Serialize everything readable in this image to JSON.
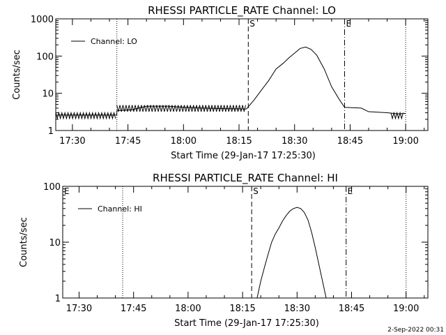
{
  "footer": {
    "date_stamp": "2-Sep-2022 00:31"
  },
  "chart_data": [
    {
      "type": "line",
      "title": "RHESSI PARTICLE_RATE Channel: LO",
      "xlabel": "Start Time (29-Jan-17 17:25:30)",
      "ylabel": "Counts/sec",
      "yscale": "log",
      "xlim": [
        "17:25:30",
        "19:06:00"
      ],
      "ylim": [
        1,
        1000
      ],
      "x_ticks": [
        "17:30",
        "17:45",
        "18:00",
        "18:15",
        "18:30",
        "18:45",
        "19:00"
      ],
      "y_ticks": [
        {
          "value": 1,
          "label": "1"
        },
        {
          "value": 10,
          "label": "10"
        },
        {
          "value": 100,
          "label": "100"
        },
        {
          "value": 1000,
          "label": "1000"
        }
      ],
      "legend": {
        "position": "top-left",
        "entries": [
          "Channel: LO"
        ]
      },
      "markers": [
        {
          "time": "17:42:00",
          "style": "dotted",
          "label": ""
        },
        {
          "time": "18:17:30",
          "style": "dashed",
          "label": "S"
        },
        {
          "time": "18:43:30",
          "style": "dashdot",
          "label": "E"
        },
        {
          "time": "19:00:00",
          "style": "dotted",
          "label": ""
        }
      ],
      "series": [
        {
          "name": "Channel: LO",
          "points": [
            [
              "17:25:30",
              2.6
            ],
            [
              "17:42:00",
              2.6
            ],
            [
              "17:42:00",
              3.4
            ],
            [
              "17:46:00",
              3.6
            ],
            [
              "17:50:00",
              4.5
            ],
            [
              "17:56:00",
              4.5
            ],
            [
              "18:00:00",
              4.2
            ],
            [
              "18:05:00",
              4.0
            ],
            [
              "18:10:00",
              3.9
            ],
            [
              "18:17:00",
              3.8
            ],
            [
              "18:19:00",
              6.5
            ],
            [
              "18:21:00",
              12
            ],
            [
              "18:23:00",
              22
            ],
            [
              "18:25:00",
              45
            ],
            [
              "18:27:00",
              65
            ],
            [
              "18:28:30",
              90
            ],
            [
              "18:30:00",
              120
            ],
            [
              "18:31:30",
              160
            ],
            [
              "18:33:00",
              175
            ],
            [
              "18:34:30",
              150
            ],
            [
              "18:36:00",
              105
            ],
            [
              "18:38:00",
              45
            ],
            [
              "18:40:00",
              15
            ],
            [
              "18:42:00",
              7
            ],
            [
              "18:43:30",
              4.2
            ],
            [
              "18:48:00",
              4.0
            ],
            [
              "18:50:00",
              3.2
            ],
            [
              "18:55:00",
              3.0
            ],
            [
              "18:58:00",
              2.8
            ],
            [
              "19:00:00",
              2.9
            ]
          ],
          "noise": [
            {
              "from": "17:25:30",
              "to": "17:42:00",
              "low": 2.1,
              "high": 3.0
            },
            {
              "from": "17:42:00",
              "to": "18:17:00",
              "low": 3.2,
              "high": 4.8
            },
            {
              "from": "18:56:00",
              "to": "18:59:30",
              "low": 2.1,
              "high": 3.0
            }
          ]
        }
      ]
    },
    {
      "type": "line",
      "title": "RHESSI PARTICLE_RATE Channel: HI",
      "xlabel": "Start Time (29-Jan-17 17:25:30)",
      "ylabel": "Counts/sec",
      "yscale": "log",
      "xlim": [
        "17:25:30",
        "19:06:00"
      ],
      "ylim": [
        1,
        100
      ],
      "x_ticks": [
        "17:30",
        "17:45",
        "18:00",
        "18:15",
        "18:30",
        "18:45",
        "19:00"
      ],
      "y_ticks": [
        {
          "value": 1,
          "label": "1"
        },
        {
          "value": 10,
          "label": "10"
        },
        {
          "value": 100,
          "label": "100"
        }
      ],
      "legend": {
        "position": "top-left",
        "entries": [
          "Channel: HI"
        ]
      },
      "markers": [
        {
          "time": "17:25:30",
          "style": "none",
          "label": "E"
        },
        {
          "time": "17:42:00",
          "style": "dotted",
          "label": ""
        },
        {
          "time": "18:17:30",
          "style": "dashed",
          "label": "S"
        },
        {
          "time": "18:43:30",
          "style": "dashdot",
          "label": "E"
        },
        {
          "time": "19:00:00",
          "style": "dotted",
          "label": ""
        }
      ],
      "series": [
        {
          "name": "Channel: HI",
          "points": [
            [
              "18:19:00",
              1.0
            ],
            [
              "18:20:00",
              2.0
            ],
            [
              "18:21:00",
              3.5
            ],
            [
              "18:22:00",
              6.0
            ],
            [
              "18:23:00",
              10
            ],
            [
              "18:24:00",
              14
            ],
            [
              "18:25:00",
              18
            ],
            [
              "18:26:00",
              24
            ],
            [
              "18:27:00",
              30
            ],
            [
              "18:28:00",
              36
            ],
            [
              "18:29:00",
              40
            ],
            [
              "18:30:00",
              42
            ],
            [
              "18:31:00",
              40
            ],
            [
              "18:32:00",
              34
            ],
            [
              "18:33:00",
              25
            ],
            [
              "18:34:00",
              15
            ],
            [
              "18:35:00",
              8
            ],
            [
              "18:36:00",
              4
            ],
            [
              "18:37:00",
              2
            ],
            [
              "18:38:00",
              1.0
            ]
          ],
          "noise": []
        }
      ]
    }
  ]
}
